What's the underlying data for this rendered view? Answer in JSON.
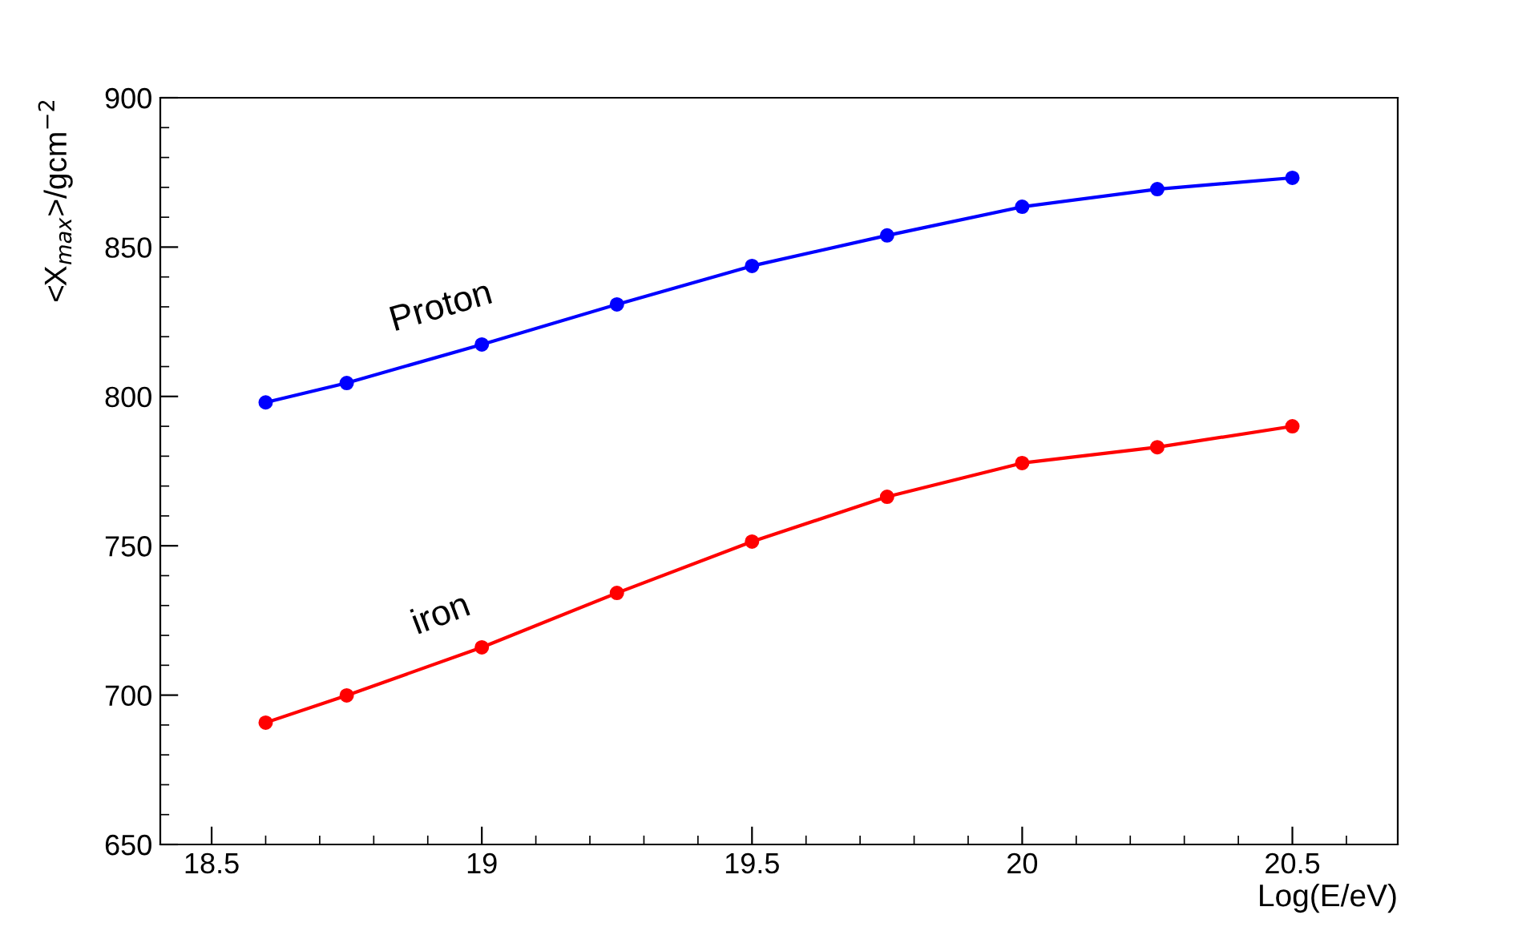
{
  "chart_data": {
    "type": "line",
    "xlabel": "Log(E/eV)",
    "ylabel": "<X$_{max}$>/gcm$^{−2}$",
    "x": [
      18.6,
      18.75,
      19,
      19.25,
      19.5,
      19.75,
      20,
      20.25,
      20.5
    ],
    "series": [
      {
        "name": "Proton",
        "color": "#0000ff",
        "values": [
          798,
          804.5,
          817.4,
          830.8,
          843.7,
          853.9,
          863.5,
          869.4,
          873.2
        ]
      },
      {
        "name": "iron",
        "color": "#ff0000",
        "values": [
          690.8,
          699.9,
          716,
          734.2,
          751.4,
          766.4,
          777.7,
          783,
          790
        ]
      }
    ],
    "xlim": [
      18.405,
      20.695
    ],
    "ylim": [
      650,
      900
    ],
    "xticks": [
      18.5,
      19,
      19.5,
      20,
      20.5
    ],
    "yticks": [
      650,
      700,
      750,
      800,
      850,
      900
    ],
    "marker": "circle",
    "line_style": "solid",
    "grid": false,
    "legend": false
  }
}
